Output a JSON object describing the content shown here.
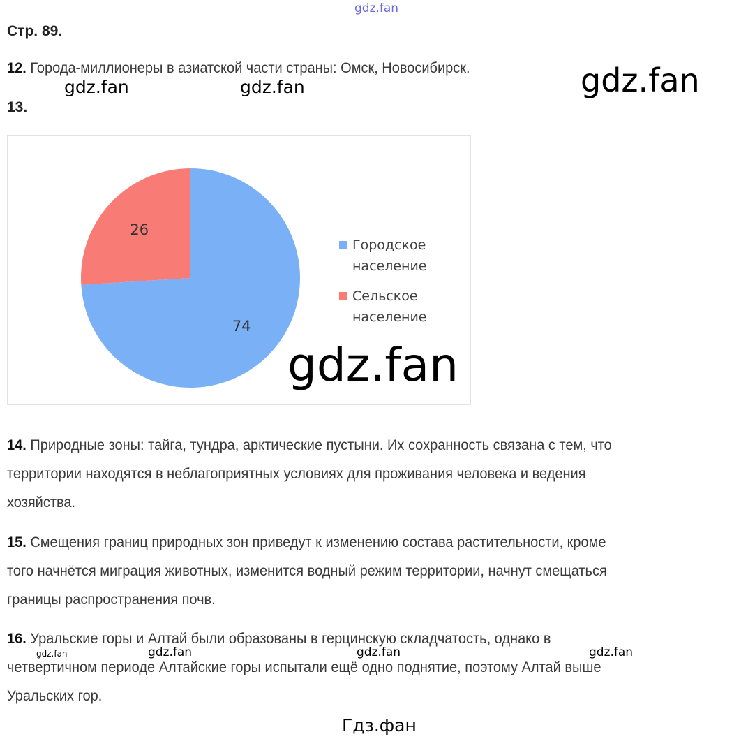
{
  "page_label": "Стр. 89.",
  "q12": {
    "num": "12.",
    "text": "Города-миллионеры в азиатской части страны: Омск, Новосибирск."
  },
  "q13": {
    "num": "13."
  },
  "q14": {
    "num": "14.",
    "lines": [
      "Природные зоны: тайга, тундра, арктические пустыни. Их сохранность связана с тем, что",
      "территории находятся в неблагоприятных условиях для проживания человека и ведения",
      "хозяйства."
    ]
  },
  "q15": {
    "num": "15.",
    "lines": [
      "Смещения границ природных зон приведут к изменению состава растительности, кроме",
      "того начнётся миграция животных, изменится водный режим территории, начнут смещаться",
      "границы распространения почв."
    ]
  },
  "q16": {
    "num": "16.",
    "lines": [
      "Уральские горы и Алтай были образованы в герцинскую складчатость, однако в",
      "четвертичном периоде Алтайские горы испытали ещё одно поднятие, поэтому Алтай выше",
      "Уральских гор."
    ]
  },
  "watermarks": {
    "top": "gdz.fan",
    "w1": "gdz.fan",
    "w2": "gdz.fan",
    "big_right": "gdz.fan",
    "big_center": "gdz.fan",
    "small": "gdz.fan",
    "b1": "gdz.fan",
    "b2": "gdz.fan",
    "b3": "gdz.fan",
    "footer": "Гдз.фан"
  },
  "chart_data": {
    "type": "pie",
    "categories": [
      "Городское население",
      "Сельское население"
    ],
    "values": [
      74,
      26
    ],
    "colors": [
      "#7ab0f5",
      "#f87b76"
    ],
    "data_labels": [
      "74",
      "26"
    ],
    "legend_placement": "right",
    "legend": [
      "Городское население",
      "Сельское население"
    ],
    "legend_lines": [
      [
        "Городское",
        "население"
      ],
      [
        "Сельское",
        "население"
      ]
    ]
  }
}
